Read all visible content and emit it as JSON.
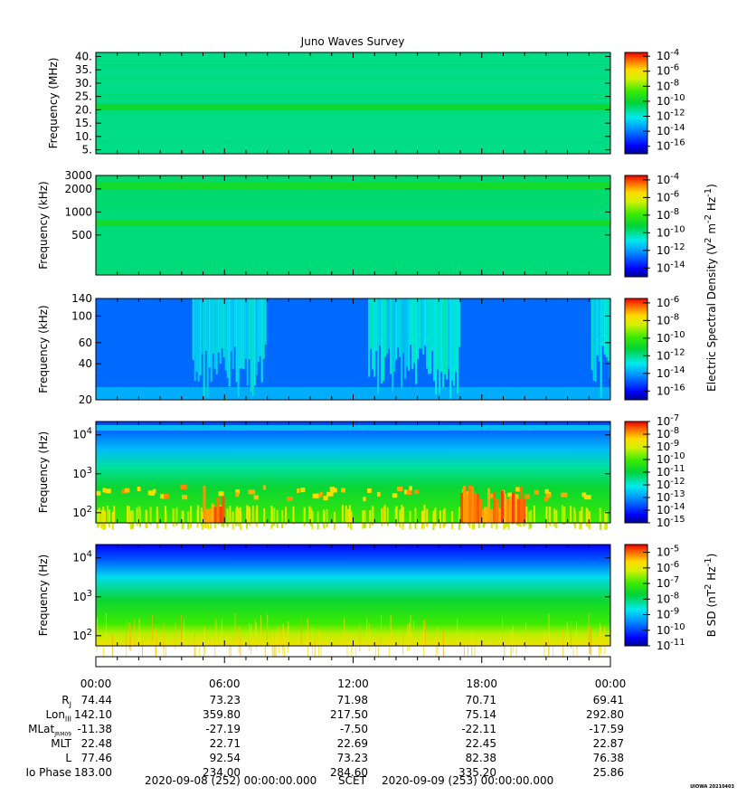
{
  "chart_data": [
    {
      "type": "heatmap",
      "title": "Juno Waves Survey",
      "ylabel": "Frequency (MHz)",
      "yticks": [
        "40.",
        "35.",
        "30.",
        "25.",
        "20.",
        "15.",
        "10.",
        "5."
      ],
      "ytick_values": [
        40,
        35,
        30,
        25,
        20,
        15,
        10,
        5
      ],
      "yscale": "linear",
      "ylim": [
        3.5,
        41.5
      ],
      "colorbar_exponents": [
        -4,
        -6,
        -8,
        -10,
        -12,
        -14,
        -16
      ],
      "colorbar_range": [
        -17,
        -3.5
      ],
      "bands": [
        {
          "freq": 21,
          "level": "green"
        }
      ]
    },
    {
      "type": "heatmap",
      "ylabel": "Frequency (kHz)",
      "yticks": [
        "3000",
        "2000",
        "1000",
        "500"
      ],
      "ytick_values": [
        3000,
        2000,
        1000,
        500
      ],
      "yscale": "log",
      "ylim": [
        150,
        3000
      ],
      "colorbar_exponents": [
        -4,
        -6,
        -8,
        -10,
        -12,
        -14
      ],
      "colorbar_range": [
        -15,
        -3.5
      ],
      "bands": [
        {
          "freq": 2200,
          "level": "green"
        },
        {
          "freq": 720,
          "level": "green"
        }
      ]
    },
    {
      "type": "heatmap",
      "ylabel": "Frequency (kHz)",
      "yticks": [
        "140",
        "100",
        "60",
        "40",
        "20"
      ],
      "ytick_values": [
        140,
        100,
        60,
        40,
        20
      ],
      "yscale": "log",
      "ylim": [
        20,
        140
      ],
      "colorbar_exponents": [
        -6,
        -8,
        -10,
        -12,
        -14,
        -16
      ],
      "colorbar_range": [
        -17,
        -5.5
      ],
      "emission_hours": [
        [
          4.5,
          8.0
        ],
        [
          12.7,
          17.0
        ],
        [
          23.1,
          24.0
        ]
      ]
    },
    {
      "type": "heatmap",
      "ylabel": "Frequency (Hz)",
      "yticks": [
        "10^4",
        "10^3",
        "10^2"
      ],
      "ytick_values": [
        10000,
        1000,
        100
      ],
      "yscale": "log",
      "ylim": [
        55,
        22000
      ],
      "colorbar_exponents": [
        -7,
        -8,
        -9,
        -10,
        -11,
        -12,
        -13,
        -14,
        -15
      ],
      "colorbar_range": [
        -15,
        -7
      ],
      "intense_hours": [
        [
          5.0,
          6.0
        ],
        [
          17.0,
          20.0
        ]
      ]
    },
    {
      "type": "heatmap",
      "ylabel": "Frequency (Hz)",
      "yticks": [
        "10^4",
        "10^3",
        "10^2"
      ],
      "ytick_values": [
        10000,
        1000,
        100
      ],
      "yscale": "log",
      "ylim": [
        55,
        22000
      ],
      "colorbar_exponents": [
        -5,
        -6,
        -7,
        -8,
        -9,
        -10,
        -11
      ],
      "colorbar_range": [
        -11,
        -4.5
      ]
    }
  ],
  "colorbar_titles": {
    "electric": "Electric Spectral Density (V^2 m^-2 Hz^-1)",
    "magnetic": "B SD (nT^2 Hz^-1)"
  },
  "time_axis": {
    "ticks": [
      "00:00",
      "06:00",
      "12:00",
      "18:00",
      "00:00"
    ],
    "tick_hours": [
      0,
      6,
      12,
      18,
      24
    ],
    "minor_hours": 1
  },
  "ephemeris": {
    "labels": [
      "R",
      "Lon",
      "MLat",
      "MLT",
      "L",
      "Io Phase"
    ],
    "label_subscripts": [
      "J",
      "III",
      "JRM09",
      "",
      "",
      ""
    ],
    "rows": [
      [
        "74.44",
        "73.23",
        "71.98",
        "70.71",
        "69.41"
      ],
      [
        "142.10",
        "359.80",
        "217.50",
        "75.14",
        "292.80"
      ],
      [
        "-11.38",
        "-27.19",
        "-7.50",
        "-22.11",
        "-17.59"
      ],
      [
        "22.48",
        "22.71",
        "22.69",
        "22.45",
        "22.87"
      ],
      [
        "77.46",
        "92.54",
        "73.23",
        "82.38",
        "76.38"
      ],
      [
        "183.00",
        "234.00",
        "284.60",
        "335.20",
        "25.86"
      ]
    ]
  },
  "footer": {
    "start": "2020-09-08 (252) 00:00:00.000",
    "scet": "SCET",
    "end": "2020-09-09 (253) 00:00:00.000"
  },
  "stamp": "UIOWA 20210403"
}
